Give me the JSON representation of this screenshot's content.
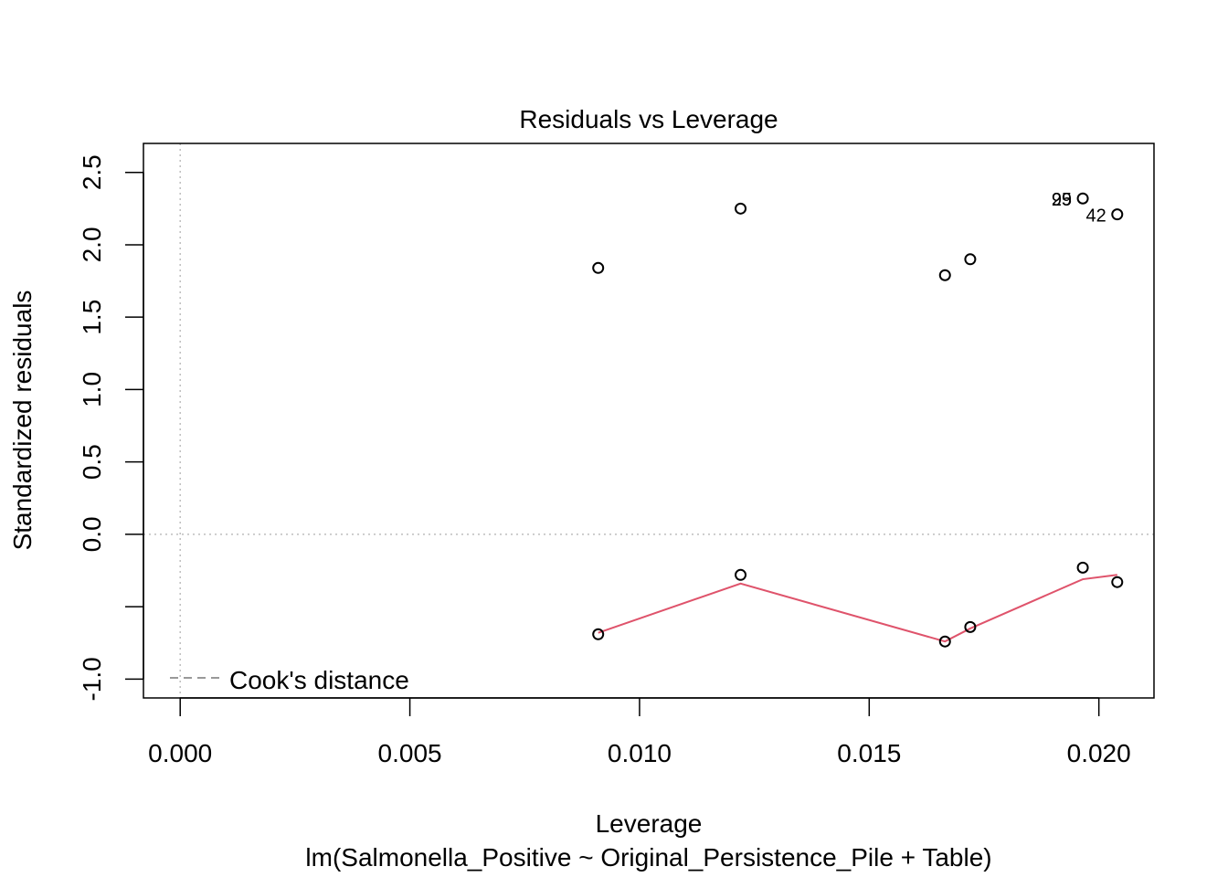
{
  "chart_data": {
    "type": "scatter",
    "title": "Residuals vs Leverage",
    "xlabel": "Leverage",
    "subtitle": "lm(Salmonella_Positive ~ Original_Persistence_Pile + Table)",
    "ylabel": "Standardized residuals",
    "xlim": [
      -0.0008,
      0.0212
    ],
    "ylim": [
      -1.13,
      2.7
    ],
    "x_ticks": [
      0.0,
      0.005,
      0.01,
      0.015,
      0.02
    ],
    "x_tick_labels": [
      "0.000",
      "0.005",
      "0.010",
      "0.015",
      "0.020"
    ],
    "y_ticks": [
      -1.0,
      -0.5,
      0.0,
      0.5,
      1.0,
      1.5,
      2.0,
      2.5
    ],
    "y_tick_labels": [
      "-1.0",
      "",
      "0.0",
      "0.5",
      "1.0",
      "1.5",
      "2.0",
      "2.5"
    ],
    "points": [
      {
        "x": 0.0091,
        "y": 1.84
      },
      {
        "x": 0.0091,
        "y": -0.69
      },
      {
        "x": 0.0122,
        "y": 2.25
      },
      {
        "x": 0.0122,
        "y": -0.28
      },
      {
        "x": 0.01665,
        "y": 1.79
      },
      {
        "x": 0.01665,
        "y": -0.74
      },
      {
        "x": 0.0172,
        "y": 1.9
      },
      {
        "x": 0.0172,
        "y": -0.64
      },
      {
        "x": 0.01965,
        "y": 2.32
      },
      {
        "x": 0.01965,
        "y": -0.23
      },
      {
        "x": 0.0204,
        "y": 2.21
      },
      {
        "x": 0.0204,
        "y": -0.33
      }
    ],
    "point_labels": [
      {
        "text": "29",
        "x": 0.01965,
        "y": 2.32
      },
      {
        "text": "95",
        "x": 0.01965,
        "y": 2.32
      },
      {
        "text": "42",
        "x": 0.0204,
        "y": 2.21
      }
    ],
    "smooth_line": [
      {
        "x": 0.0091,
        "y": -0.68
      },
      {
        "x": 0.0122,
        "y": -0.34
      },
      {
        "x": 0.01665,
        "y": -0.74
      },
      {
        "x": 0.0172,
        "y": -0.65
      },
      {
        "x": 0.01965,
        "y": -0.31
      },
      {
        "x": 0.0204,
        "y": -0.28
      }
    ],
    "reference_lines": {
      "h": 0,
      "v": 0
    },
    "grid": false,
    "legend": {
      "placement": "bottom-left",
      "entries": [
        {
          "label": "Cook's distance",
          "style": "dashed",
          "color": "#999999"
        }
      ]
    },
    "colors": {
      "points": "#000000",
      "smooth": "#DF536B",
      "reference": "#BEBEBE",
      "legend": "#999999"
    }
  }
}
